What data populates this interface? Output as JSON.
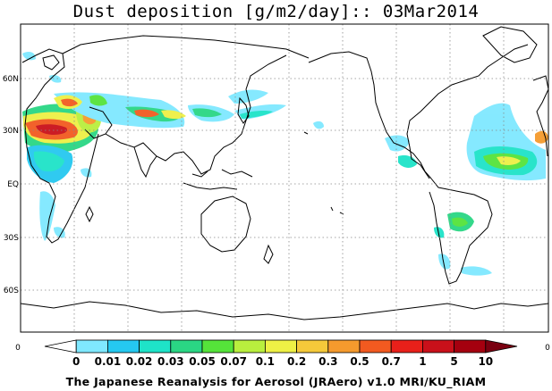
{
  "title": "Dust deposition [g/m2/day]:: 03Mar2014",
  "footer": "The Japanese Reanalysis for Aerosol (JRAero) v1.0 MRI/KU_RIAM",
  "map": {
    "projection": "equirectangular, Pacific-centred",
    "lat_labels": [
      "60N",
      "30N",
      "EQ",
      "30S",
      "60S"
    ],
    "gridlines": "dotted"
  },
  "colorbar": {
    "left_end": "0",
    "right_end": "0",
    "labels": [
      "0",
      "0.01",
      "0.02",
      "0.03",
      "0.05",
      "0.07",
      "0.1",
      "0.2",
      "0.3",
      "0.5",
      "0.7",
      "1",
      "5",
      "10"
    ],
    "colors": [
      "#ffffff",
      "#7fe8ff",
      "#25c8f0",
      "#1ee3c8",
      "#2ad684",
      "#55e33a",
      "#b9ef3e",
      "#eef045",
      "#f5c93a",
      "#f59a2d",
      "#f25a20",
      "#e8201a",
      "#c9101a",
      "#a5000f",
      "#7a0010"
    ]
  }
}
